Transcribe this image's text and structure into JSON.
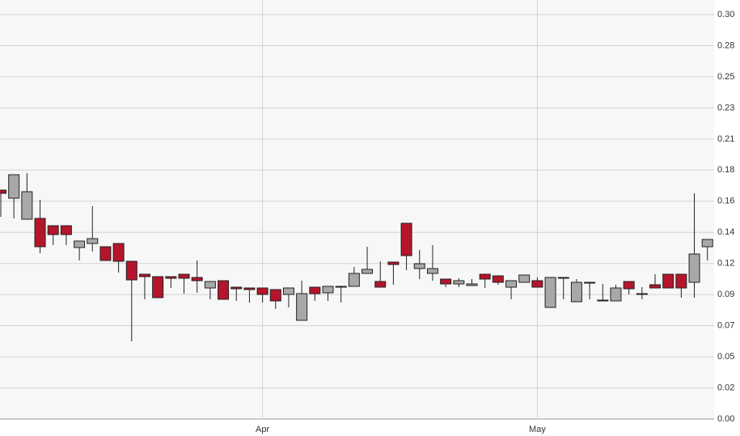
{
  "chart_data": {
    "type": "candlestick",
    "categories": [
      null,
      null,
      null,
      null,
      null,
      null,
      null,
      null,
      null,
      null,
      null,
      null,
      null,
      null,
      null,
      null,
      null,
      null,
      null,
      null,
      "Apr",
      null,
      null,
      null,
      null,
      null,
      null,
      null,
      null,
      null,
      null,
      null,
      null,
      null,
      null,
      null,
      null,
      null,
      null,
      null,
      null,
      "May",
      null,
      null,
      null,
      null,
      null,
      null,
      null,
      null,
      null,
      null,
      null,
      null,
      null
    ],
    "open": [
      0.1698,
      0.1638,
      0.1482,
      0.1488,
      0.1434,
      0.1434,
      0.1272,
      0.1302,
      0.1278,
      0.1302,
      0.117,
      0.1074,
      0.1056,
      0.1056,
      0.1074,
      0.105,
      0.0972,
      0.1026,
      0.0978,
      0.0972,
      0.0972,
      0.096,
      0.0924,
      0.0732,
      0.0978,
      0.0936,
      0.0978,
      0.0984,
      0.108,
      0.102,
      0.1164,
      0.1452,
      0.1116,
      0.108,
      0.1038,
      0.1002,
      0.099,
      0.1074,
      0.1062,
      0.0978,
      0.1014,
      0.1026,
      0.0828,
      0.105,
      0.087,
      0.1014,
      0.0882,
      0.0876,
      0.102,
      0.093,
      0.0996,
      0.1074,
      0.1074,
      0.1014,
      0.1278
    ],
    "high": [
      0.1698,
      0.1812,
      0.1824,
      0.1626,
      0.1434,
      0.1434,
      0.132,
      0.1578,
      0.1278,
      0.1302,
      0.117,
      0.1074,
      0.1056,
      0.1056,
      0.1074,
      0.1176,
      0.102,
      0.1026,
      0.0978,
      0.0972,
      0.0972,
      0.096,
      0.0972,
      0.1026,
      0.0978,
      0.0984,
      0.0984,
      0.1128,
      0.1278,
      0.117,
      0.1164,
      0.1452,
      0.1254,
      0.129,
      0.1038,
      0.1044,
      0.1038,
      0.1074,
      0.1062,
      0.1026,
      0.1068,
      0.105,
      0.105,
      0.105,
      0.1038,
      0.1014,
      0.1002,
      0.0996,
      0.102,
      0.0978,
      0.1074,
      0.1074,
      0.1074,
      0.1674,
      0.1332
    ],
    "low": [
      0.15,
      0.1488,
      0.1482,
      0.123,
      0.129,
      0.129,
      0.1176,
      0.1242,
      0.1176,
      0.1086,
      0.0576,
      0.0888,
      0.09,
      0.0972,
      0.093,
      0.0936,
      0.0888,
      0.0888,
      0.0876,
      0.0864,
      0.0864,
      0.0816,
      0.0828,
      0.0732,
      0.0876,
      0.0876,
      0.0864,
      0.0984,
      0.108,
      0.0978,
      0.0996,
      0.1104,
      0.1038,
      0.1026,
      0.0978,
      0.0978,
      0.099,
      0.0972,
      0.0996,
      0.0888,
      0.1014,
      0.0978,
      0.0828,
      0.0888,
      0.087,
      0.0888,
      0.0876,
      0.0876,
      0.0924,
      0.0888,
      0.0972,
      0.0972,
      0.09,
      0.09,
      0.1176
    ],
    "close": [
      0.1674,
      0.1812,
      0.1686,
      0.1278,
      0.1368,
      0.1368,
      0.132,
      0.1338,
      0.1176,
      0.117,
      0.1032,
      0.1056,
      0.09,
      0.1044,
      0.1044,
      0.1026,
      0.102,
      0.0888,
      0.0966,
      0.096,
      0.0924,
      0.0876,
      0.0972,
      0.093,
      0.093,
      0.0984,
      0.0984,
      0.108,
      0.111,
      0.0978,
      0.1146,
      0.1212,
      0.1152,
      0.1116,
      0.1002,
      0.1026,
      0.1002,
      0.1038,
      0.1014,
      0.1026,
      0.1068,
      0.0978,
      0.105,
      0.1044,
      0.1014,
      0.1008,
      0.0876,
      0.0972,
      0.0966,
      0.0924,
      0.0972,
      0.0972,
      0.0972,
      0.1224,
      0.1332
    ],
    "up_color": "#a8a8a8",
    "down_color": "#b5152b",
    "ylim": [
      0,
      0.3
    ],
    "yticks": [
      {
        "value": 0,
        "label": "0.00"
      },
      {
        "value": 0.023077,
        "label": "0.02"
      },
      {
        "value": 0.046154,
        "label": "0.05"
      },
      {
        "value": 0.069231,
        "label": "0.07"
      },
      {
        "value": 0.092308,
        "label": "0.09"
      },
      {
        "value": 0.115385,
        "label": "0.12"
      },
      {
        "value": 0.138462,
        "label": "0.14"
      },
      {
        "value": 0.161538,
        "label": "0.16"
      },
      {
        "value": 0.184615,
        "label": "0.18"
      },
      {
        "value": 0.207692,
        "label": "0.21"
      },
      {
        "value": 0.230769,
        "label": "0.23"
      },
      {
        "value": 0.253846,
        "label": "0.25"
      },
      {
        "value": 0.276923,
        "label": "0.28"
      },
      {
        "value": 0.3,
        "label": "0.30"
      }
    ],
    "grid": true
  }
}
